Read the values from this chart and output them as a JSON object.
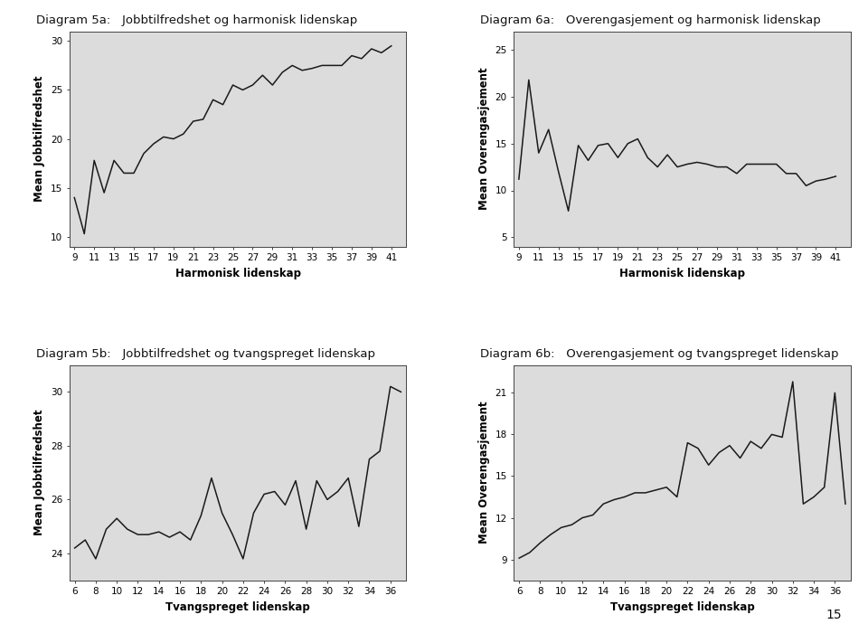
{
  "title_5a": "Diagram 5a:   Jobbtilfredshet og harmonisk lidenskap",
  "title_5b": "Diagram 5b:   Jobbtilfredshet og tvangspreget lidenskap",
  "title_6a": "Diagram 6a:   Overengasjement og harmonisk lidenskap",
  "title_6b": "Diagram 6b:   Overengasjement og tvangspreget lidenskap",
  "page_number": "15",
  "plot5a_x": [
    9,
    10,
    11,
    12,
    13,
    14,
    15,
    16,
    17,
    18,
    19,
    20,
    21,
    22,
    23,
    24,
    25,
    26,
    27,
    28,
    29,
    30,
    31,
    32,
    33,
    34,
    35,
    36,
    37,
    38,
    39,
    40,
    41
  ],
  "plot5a_y": [
    14.0,
    10.3,
    17.8,
    14.5,
    17.8,
    16.5,
    16.5,
    18.5,
    19.5,
    20.2,
    20.0,
    20.5,
    21.8,
    22.0,
    24.0,
    23.5,
    25.5,
    25.0,
    25.5,
    26.5,
    25.5,
    26.8,
    27.5,
    27.0,
    27.2,
    27.5,
    27.5,
    27.5,
    28.5,
    28.2,
    29.2,
    28.8,
    29.5
  ],
  "plot5a_xlabel": "Harmonisk lidenskap",
  "plot5a_ylabel": "Mean Jobbtilfredshet",
  "plot5a_xticks": [
    9,
    11,
    13,
    15,
    17,
    19,
    21,
    23,
    25,
    27,
    29,
    31,
    33,
    35,
    37,
    39,
    41
  ],
  "plot5a_yticks": [
    10,
    15,
    20,
    25,
    30
  ],
  "plot5a_ylim": [
    9,
    31
  ],
  "plot5a_xlim": [
    8.5,
    42.5
  ],
  "plot5b_x": [
    6,
    7,
    8,
    9,
    10,
    11,
    12,
    13,
    14,
    15,
    16,
    17,
    18,
    19,
    20,
    21,
    22,
    23,
    24,
    25,
    26,
    27,
    28,
    29,
    30,
    31,
    32,
    33,
    34,
    35,
    36,
    37
  ],
  "plot5b_y": [
    24.2,
    24.5,
    23.8,
    24.9,
    25.3,
    24.9,
    24.7,
    24.7,
    24.8,
    24.6,
    24.8,
    24.5,
    25.4,
    26.8,
    25.5,
    24.7,
    23.8,
    25.5,
    26.2,
    26.3,
    25.8,
    26.7,
    24.9,
    26.7,
    26.0,
    26.3,
    26.8,
    25.0,
    27.5,
    27.8,
    30.2,
    30.0
  ],
  "plot5b_xlabel": "Tvangspreget lidenskap",
  "plot5b_ylabel": "Mean Jobbtilfredshet",
  "plot5b_xticks": [
    6,
    8,
    10,
    12,
    14,
    16,
    18,
    20,
    22,
    24,
    26,
    28,
    30,
    32,
    34,
    36
  ],
  "plot5b_yticks": [
    24,
    26,
    28,
    30
  ],
  "plot5b_ylim": [
    23.0,
    31
  ],
  "plot5b_xlim": [
    5.5,
    37.5
  ],
  "plot6a_x": [
    9,
    10,
    11,
    12,
    13,
    14,
    15,
    16,
    17,
    18,
    19,
    20,
    21,
    22,
    23,
    24,
    25,
    26,
    27,
    28,
    29,
    30,
    31,
    32,
    33,
    34,
    35,
    36,
    37,
    38,
    39,
    40,
    41
  ],
  "plot6a_y": [
    11.2,
    21.8,
    14.0,
    16.5,
    12.0,
    7.8,
    14.8,
    13.2,
    14.8,
    15.0,
    13.5,
    15.0,
    15.5,
    13.5,
    12.5,
    13.8,
    12.5,
    12.8,
    13.0,
    12.8,
    12.5,
    12.5,
    11.8,
    12.8,
    12.8,
    12.8,
    12.8,
    11.8,
    11.8,
    10.5,
    11.0,
    11.2,
    11.5
  ],
  "plot6a_xlabel": "Harmonisk lidenskap",
  "plot6a_ylabel": "Mean Overengasjement",
  "plot6a_xticks": [
    9,
    11,
    13,
    15,
    17,
    19,
    21,
    23,
    25,
    27,
    29,
    31,
    33,
    35,
    37,
    39,
    41
  ],
  "plot6a_yticks": [
    5,
    10,
    15,
    20,
    25
  ],
  "plot6a_ylim": [
    4,
    27
  ],
  "plot6a_xlim": [
    8.5,
    42.5
  ],
  "plot6b_x": [
    6,
    7,
    8,
    9,
    10,
    11,
    12,
    13,
    14,
    15,
    16,
    17,
    18,
    19,
    20,
    21,
    22,
    23,
    24,
    25,
    26,
    27,
    28,
    29,
    30,
    31,
    32,
    33,
    34,
    35,
    36,
    37
  ],
  "plot6b_y": [
    9.1,
    9.5,
    10.2,
    10.8,
    11.3,
    11.5,
    12.0,
    12.2,
    13.0,
    13.3,
    13.5,
    13.8,
    13.8,
    14.0,
    14.2,
    13.5,
    17.4,
    17.0,
    15.8,
    16.7,
    17.2,
    16.3,
    17.5,
    17.0,
    18.0,
    17.8,
    21.8,
    13.0,
    13.5,
    14.2,
    21.0,
    13.0
  ],
  "plot6b_xlabel": "Tvangspreget lidenskap",
  "plot6b_ylabel": "Mean Overengasjement",
  "plot6b_xticks": [
    6,
    8,
    10,
    12,
    14,
    16,
    18,
    20,
    22,
    24,
    26,
    28,
    30,
    32,
    34,
    36
  ],
  "plot6b_yticks": [
    9,
    12,
    15,
    18,
    21
  ],
  "plot6b_ylim": [
    7.5,
    23
  ],
  "plot6b_xlim": [
    5.5,
    37.5
  ],
  "bg_color": "#dcdcdc",
  "line_color": "#1a1a1a",
  "line_width": 1.1,
  "fig_bg_color": "#ffffff",
  "title_fontsize": 9.5,
  "axis_label_fontsize": 8.5,
  "tick_fontsize": 7.5
}
